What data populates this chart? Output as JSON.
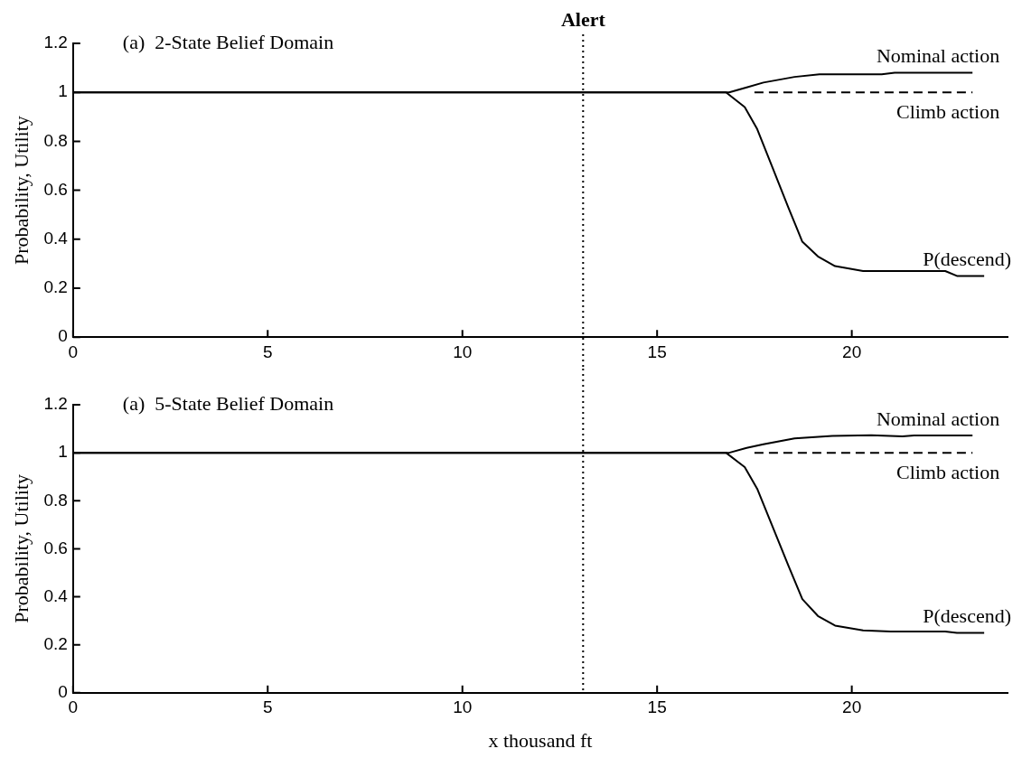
{
  "chart_data": [
    {
      "type": "line",
      "title": "(a)  2-State Belief Domain",
      "ylabel": "Probability, Utility",
      "xlim": [
        0,
        24
      ],
      "xticks": [
        0,
        5,
        10,
        15,
        20
      ],
      "ylim": [
        0,
        1.2
      ],
      "yticks": [
        0,
        0.2,
        0.4,
        0.6,
        0.8,
        1,
        1.2
      ],
      "grid": false,
      "legend": false,
      "marker": "none",
      "ref_lines": [
        {
          "axis": "x",
          "value": 13.1,
          "label": "Alert",
          "line_style": "dotted",
          "color": "#000000"
        }
      ],
      "series": [
        {
          "name": "Nominal action",
          "color": "#000000",
          "line_style": "solid",
          "x": [
            0,
            16.4,
            16.85,
            17.3,
            17.73,
            18.53,
            19.17,
            20.77,
            21.1,
            23.1
          ],
          "values": [
            1,
            1,
            1,
            1.02,
            1.04,
            1.063,
            1.074,
            1.074,
            1.08,
            1.08
          ]
        },
        {
          "name": "Climb action",
          "color": "#000000",
          "line_style": "dashed",
          "x": [
            17.5,
            23.1
          ],
          "values": [
            1,
            1
          ]
        },
        {
          "name": "P(descend)",
          "color": "#000000",
          "line_style": "solid",
          "x": [
            0,
            16.4,
            16.77,
            17.25,
            17.57,
            17.97,
            18.37,
            18.73,
            19.13,
            19.57,
            20.29,
            22.4,
            22.7,
            23.4
          ],
          "values": [
            1,
            1,
            1,
            0.94,
            0.85,
            0.69,
            0.53,
            0.39,
            0.33,
            0.29,
            0.27,
            0.27,
            0.25,
            0.25
          ]
        }
      ]
    },
    {
      "type": "line",
      "title": "(a)  5-State Belief Domain",
      "xlabel": "x thousand ft",
      "ylabel": "Probability, Utility",
      "xlim": [
        0,
        24
      ],
      "xticks": [
        0,
        5,
        10,
        15,
        20
      ],
      "ylim": [
        0,
        1.2
      ],
      "yticks": [
        0,
        0.2,
        0.4,
        0.6,
        0.8,
        1,
        1.2
      ],
      "grid": false,
      "legend": false,
      "marker": "none",
      "ref_lines": [
        {
          "axis": "x",
          "value": 13.1,
          "line_style": "dotted",
          "color": "#000000"
        }
      ],
      "series": [
        {
          "name": "Nominal action",
          "color": "#000000",
          "line_style": "solid",
          "x": [
            0,
            16.4,
            16.85,
            17.3,
            17.73,
            18.53,
            19.5,
            20.5,
            21.3,
            21.6,
            23.1
          ],
          "values": [
            1,
            1,
            1,
            1.02,
            1.035,
            1.06,
            1.07,
            1.073,
            1.068,
            1.072,
            1.072
          ]
        },
        {
          "name": "Climb action",
          "color": "#000000",
          "line_style": "dashed",
          "x": [
            17.5,
            23.1
          ],
          "values": [
            1,
            1
          ]
        },
        {
          "name": "P(descend)",
          "color": "#000000",
          "line_style": "solid",
          "x": [
            0,
            16.4,
            16.77,
            17.25,
            17.57,
            17.97,
            18.37,
            18.73,
            19.13,
            19.57,
            20.29,
            21.0,
            22.4,
            22.7,
            23.4
          ],
          "values": [
            1,
            1,
            1,
            0.94,
            0.85,
            0.69,
            0.53,
            0.39,
            0.32,
            0.28,
            0.26,
            0.255,
            0.255,
            0.25,
            0.25
          ]
        }
      ]
    }
  ]
}
